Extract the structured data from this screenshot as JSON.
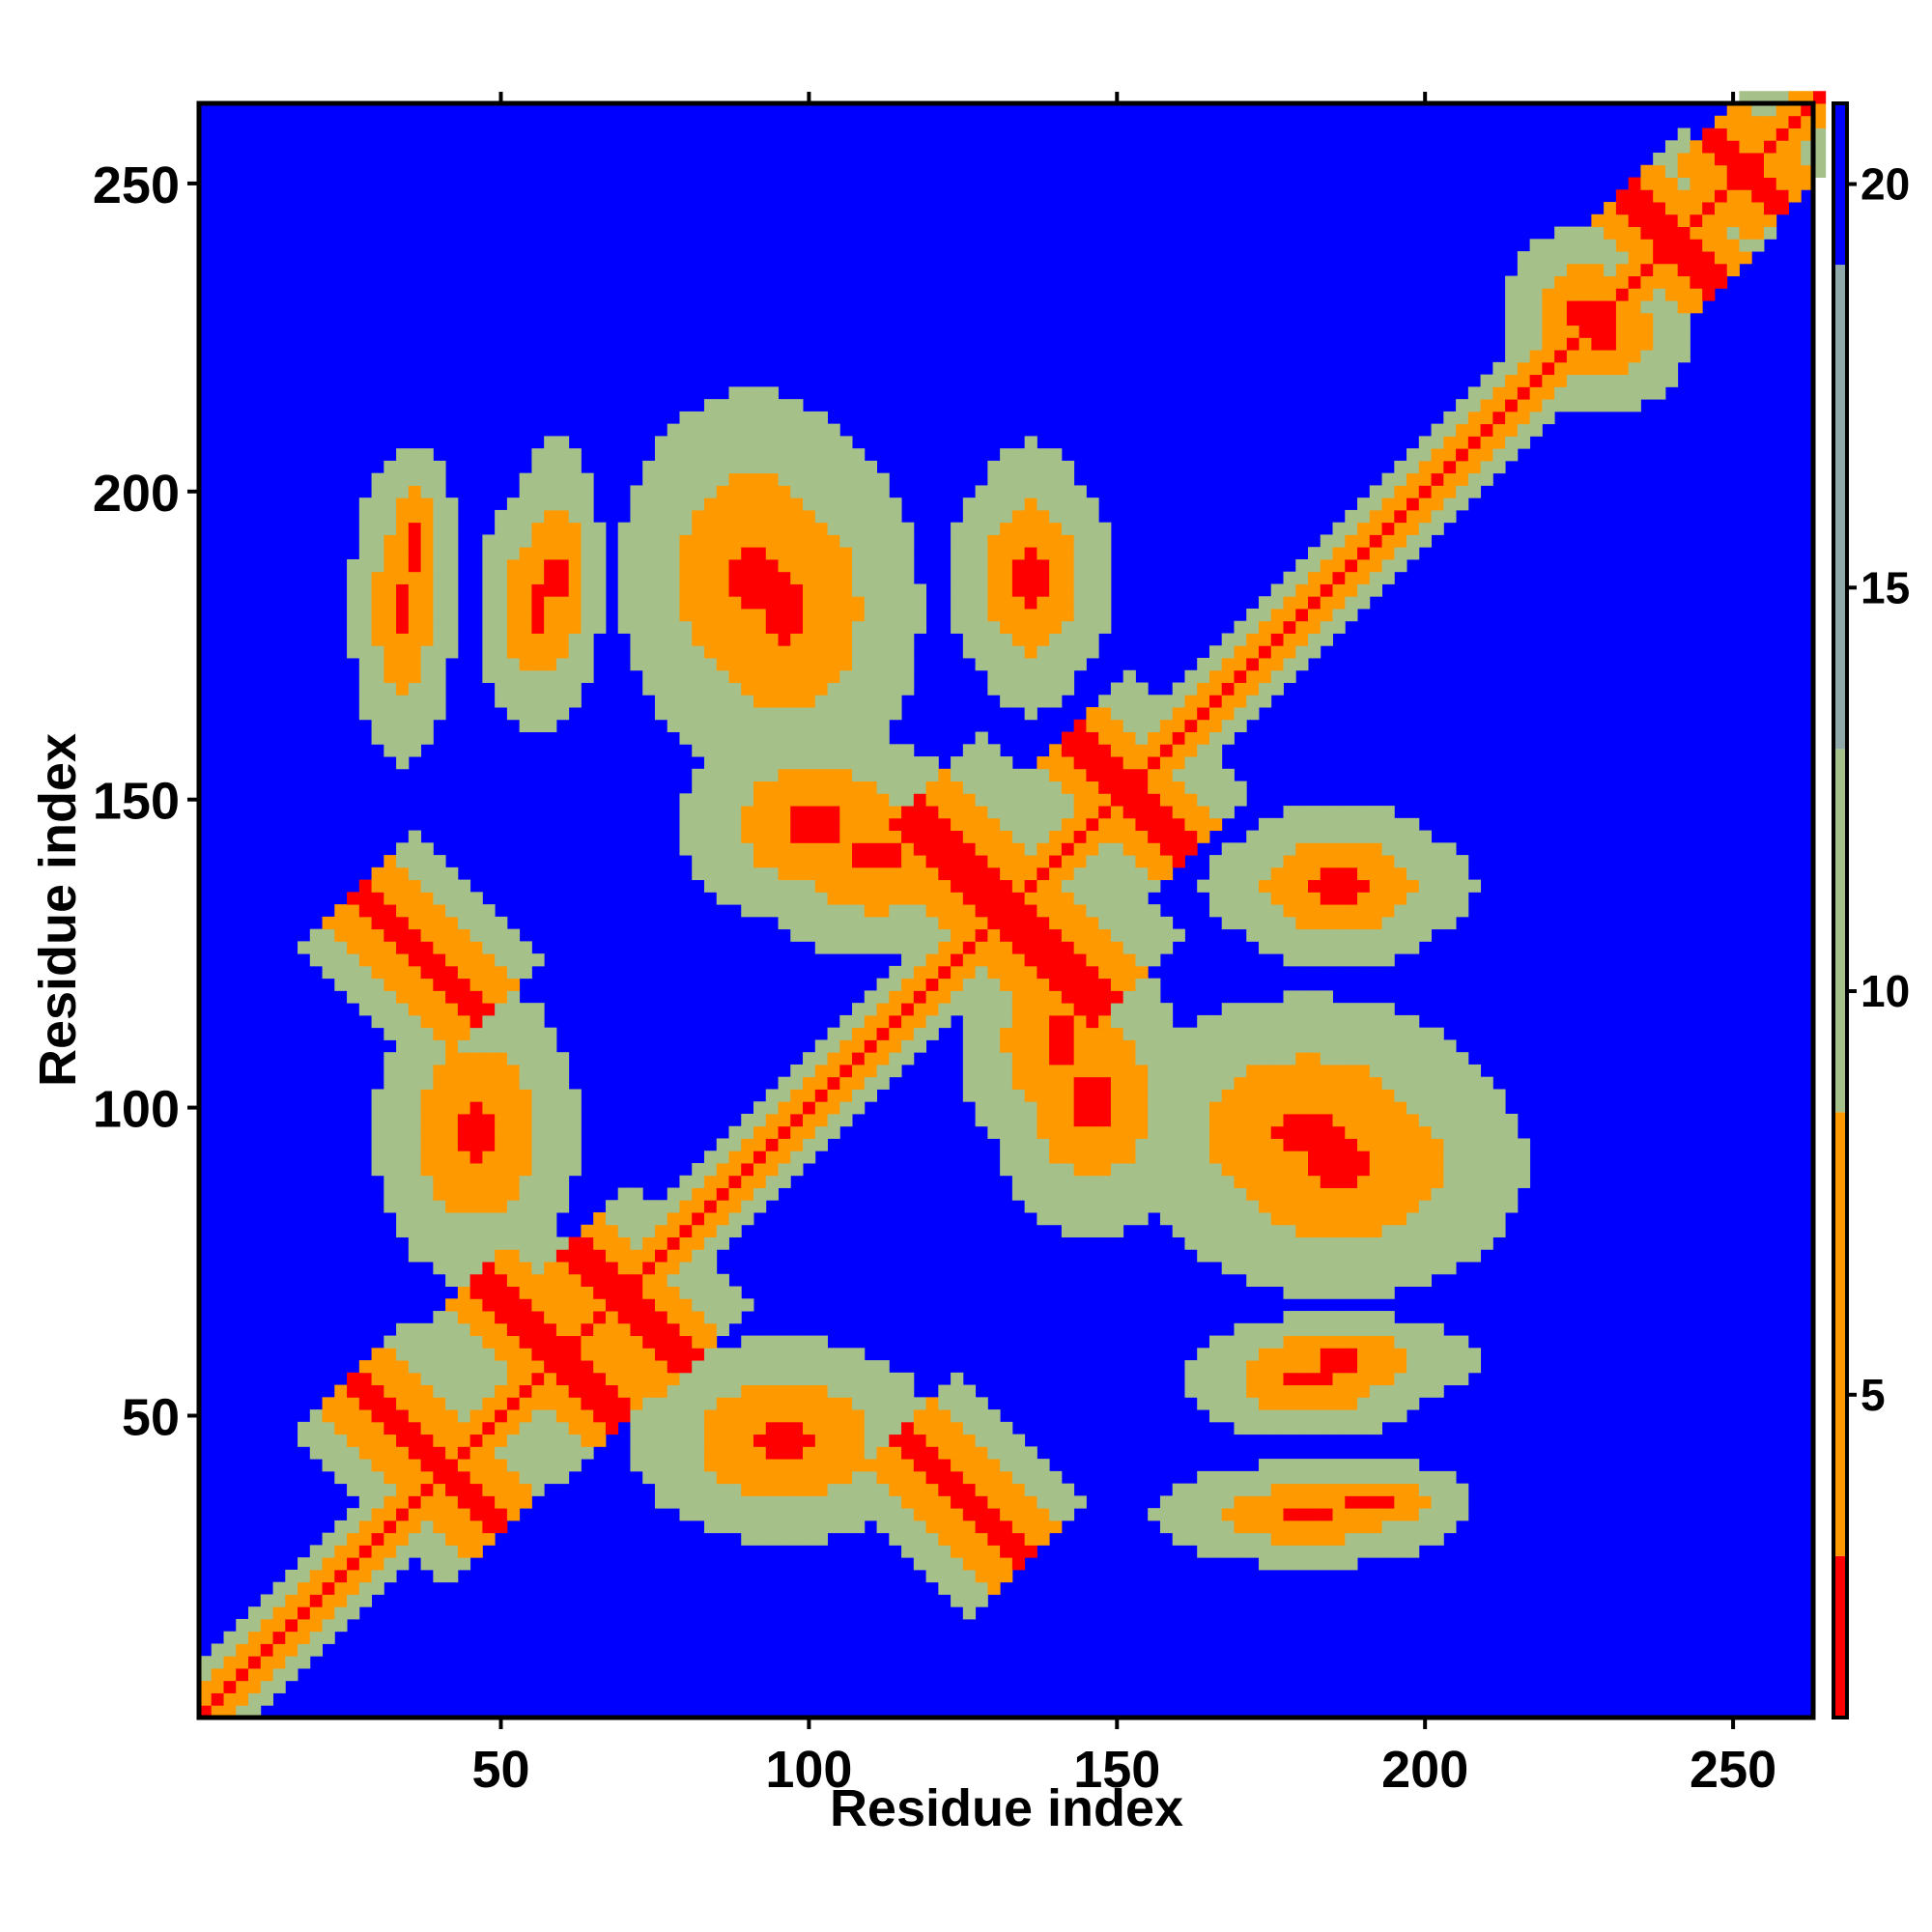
{
  "chart_data": {
    "type": "heatmap",
    "title": "",
    "xlabel": "Residue index",
    "ylabel": "Residue index",
    "xlim": [
      1,
      263
    ],
    "ylim": [
      1,
      263
    ],
    "xticks": [
      "50",
      "100",
      "150",
      "200",
      "250"
    ],
    "yticks": [
      "50",
      "100",
      "150",
      "200",
      "250"
    ],
    "colorbar": {
      "range": [
        1,
        21
      ],
      "ticks": [
        "5",
        "10",
        "15",
        "20"
      ],
      "colors": {
        "near": "#ff0000",
        "mid": "#ff9900",
        "contact_edge": "#a6c08a",
        "far": "#0000ff"
      }
    },
    "background_value": 21,
    "contact_features": [
      {
        "kind": "diagonal",
        "from": 1,
        "to": 263,
        "width": 4
      },
      {
        "kind": "antidiagonal",
        "center": [
          37,
          43
        ],
        "half_length": 12,
        "width": 4
      },
      {
        "kind": "antidiagonal",
        "center": [
          57,
          60
        ],
        "half_length": 12,
        "width": 4
      },
      {
        "kind": "antidiagonal",
        "center": [
          70,
          67
        ],
        "half_length": 10,
        "width": 4
      },
      {
        "kind": "antidiagonal",
        "center": [
          36,
          124
        ],
        "half_length": 10,
        "width": 4
      },
      {
        "kind": "antidiagonal",
        "center": [
          124,
          36
        ],
        "half_length": 10,
        "width": 4
      },
      {
        "kind": "antidiagonal",
        "center": [
          131,
          131
        ],
        "half_length": 16,
        "width": 5
      },
      {
        "kind": "antidiagonal",
        "center": [
          151,
          150
        ],
        "half_length": 10,
        "width": 4
      },
      {
        "kind": "antidiagonal",
        "center": [
          239,
          240
        ],
        "half_length": 8,
        "width": 4
      },
      {
        "kind": "antidiagonal",
        "center": [
          251,
          251
        ],
        "half_length": 6,
        "width": 4
      },
      {
        "kind": "blob",
        "center": [
          35,
          190
        ],
        "size": [
          12,
          30
        ]
      },
      {
        "kind": "blob",
        "center": [
          58,
          185
        ],
        "size": [
          14,
          40
        ]
      },
      {
        "kind": "blob",
        "center": [
          95,
          180
        ],
        "size": [
          40,
          55
        ]
      },
      {
        "kind": "blob",
        "center": [
          135,
          185
        ],
        "size": [
          20,
          40
        ]
      },
      {
        "kind": "blob",
        "center": [
          185,
          90
        ],
        "size": [
          55,
          40
        ]
      },
      {
        "kind": "blob",
        "center": [
          185,
          135
        ],
        "size": [
          35,
          25
        ]
      },
      {
        "kind": "blob",
        "center": [
          180,
          55
        ],
        "size": [
          35,
          18
        ]
      },
      {
        "kind": "blob",
        "center": [
          180,
          33
        ],
        "size": [
          45,
          15
        ]
      },
      {
        "kind": "blob",
        "center": [
          95,
          45
        ],
        "size": [
          45,
          30
        ]
      },
      {
        "kind": "blob",
        "center": [
          145,
          100
        ],
        "size": [
          30,
          40
        ]
      },
      {
        "kind": "blob",
        "center": [
          110,
          140
        ],
        "size": [
          40,
          30
        ]
      },
      {
        "kind": "blob",
        "center": [
          225,
          228
        ],
        "size": [
          25,
          25
        ]
      }
    ]
  }
}
